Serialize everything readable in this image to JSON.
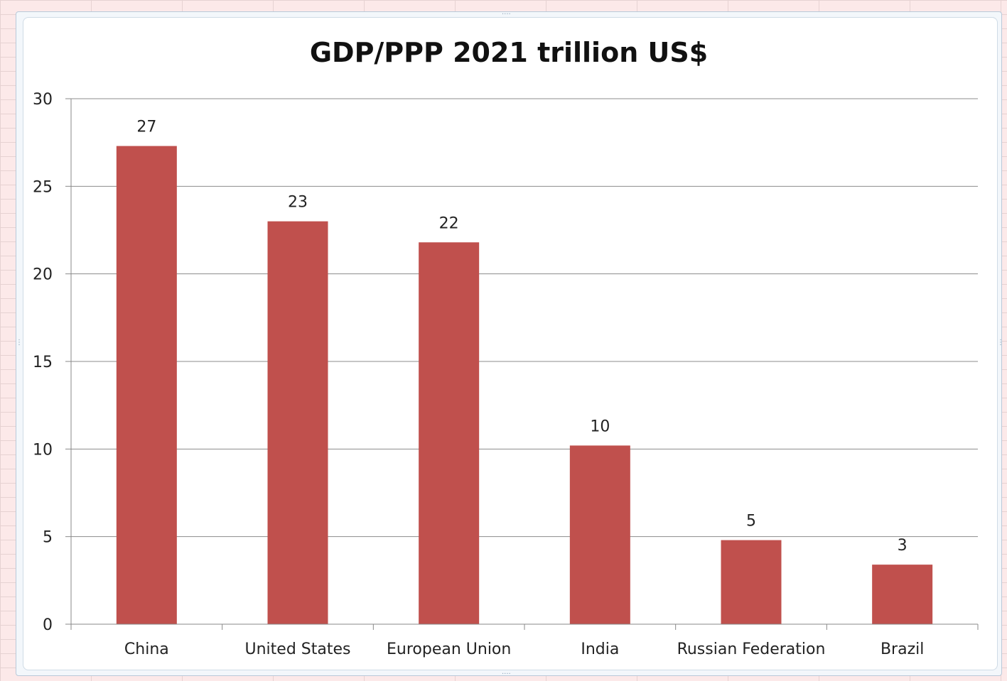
{
  "chart_data": {
    "type": "bar",
    "title": "GDP/PPP 2021 trillion US$",
    "categories": [
      "China",
      "United States",
      "European Union",
      "India",
      "Russian Federation",
      "Brazil"
    ],
    "values": [
      27.3,
      23.0,
      21.8,
      10.2,
      4.8,
      3.4
    ],
    "data_labels": [
      "27",
      "23",
      "22",
      "10",
      "5",
      "3"
    ],
    "yticks": [
      "0",
      "5",
      "10",
      "15",
      "20",
      "25",
      "30"
    ],
    "ylim": [
      0,
      30
    ],
    "xlabel": "",
    "ylabel": "",
    "grid": true,
    "legend": "none",
    "bar_color": "#c0504d",
    "grid_color": "#8c8c8c"
  }
}
